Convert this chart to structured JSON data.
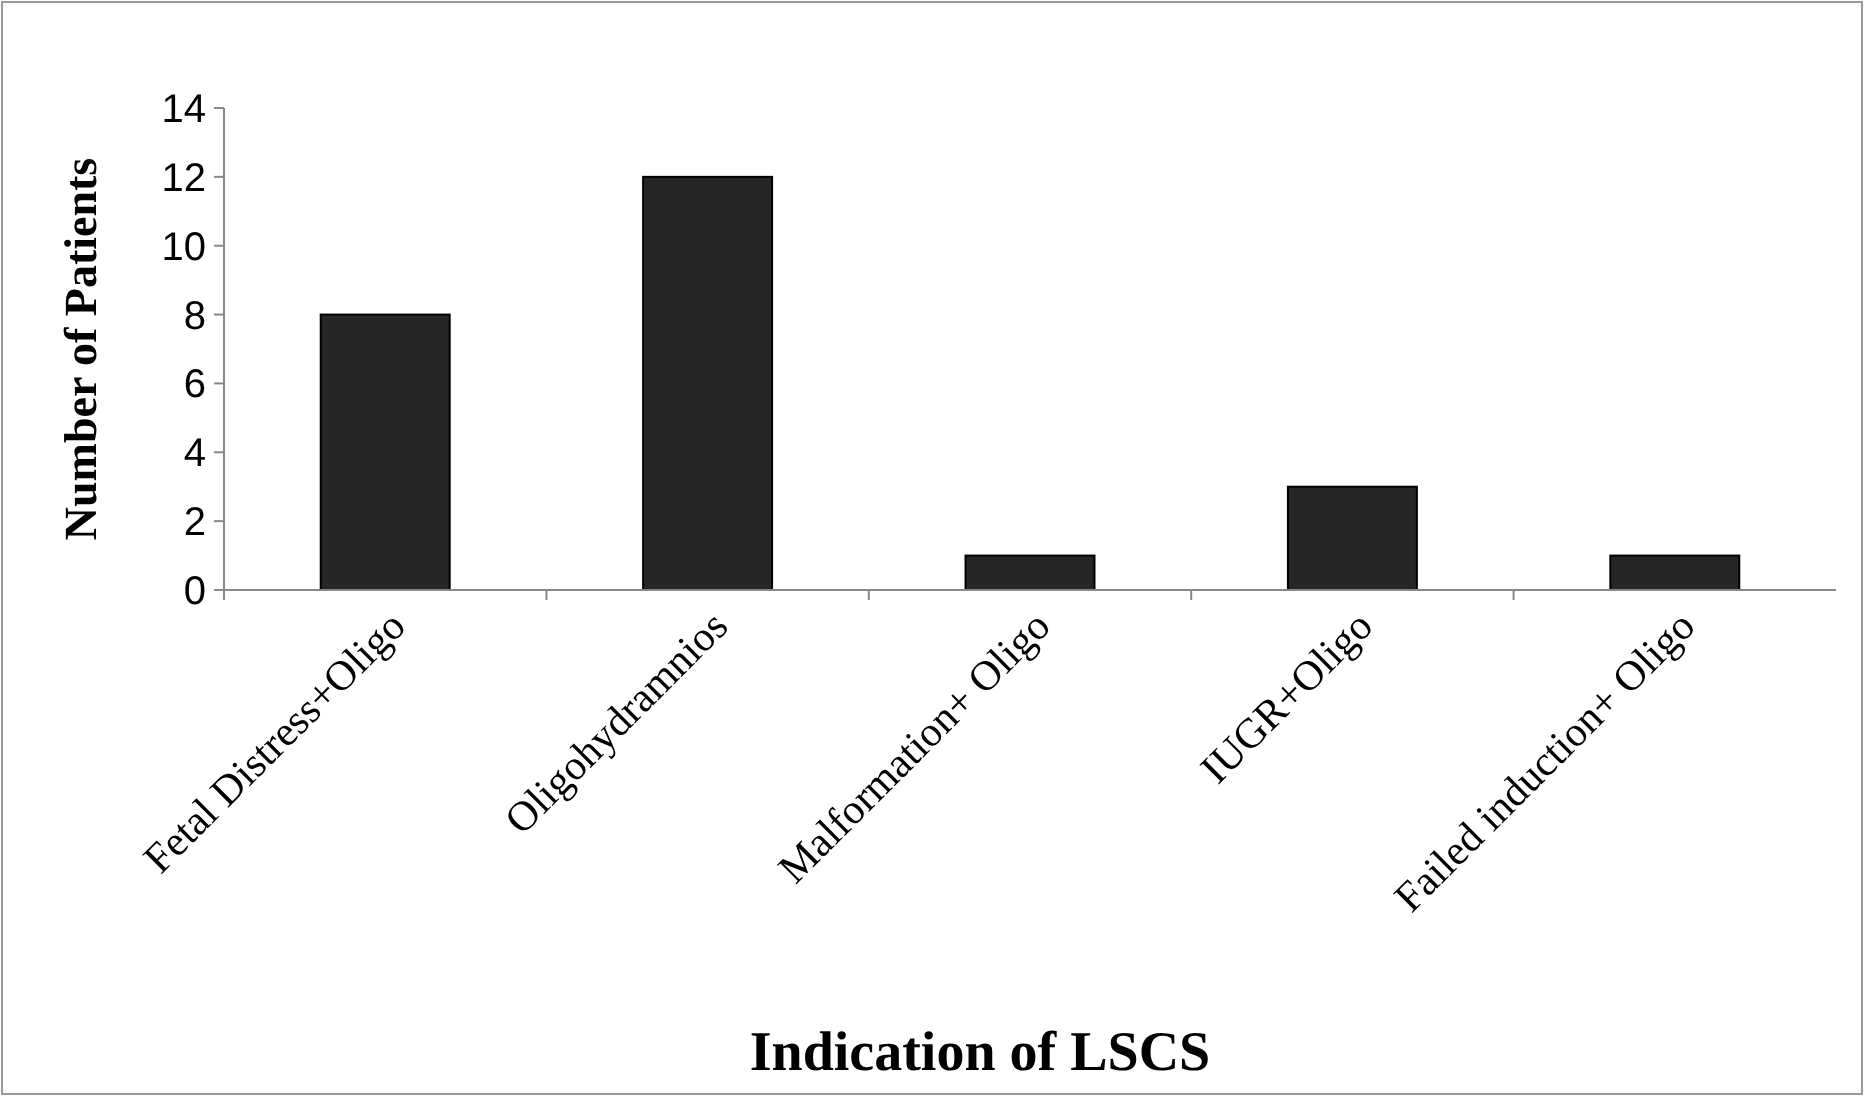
{
  "chart_data": {
    "type": "bar",
    "xlabel": "Indication of LSCS",
    "ylabel": "Number  of Patients",
    "categories": [
      "Fetal Distress+Oligo",
      "Oligohydramnios",
      "Malformation+ Oligo",
      "IUGR+Oligo",
      "Failed induction+ Oligo"
    ],
    "values": [
      8,
      12,
      1,
      3,
      1
    ],
    "color": "#262626",
    "ylim": [
      0,
      14
    ],
    "yticks": [
      0,
      2,
      4,
      6,
      8,
      10,
      12,
      14
    ],
    "grid": false
  }
}
